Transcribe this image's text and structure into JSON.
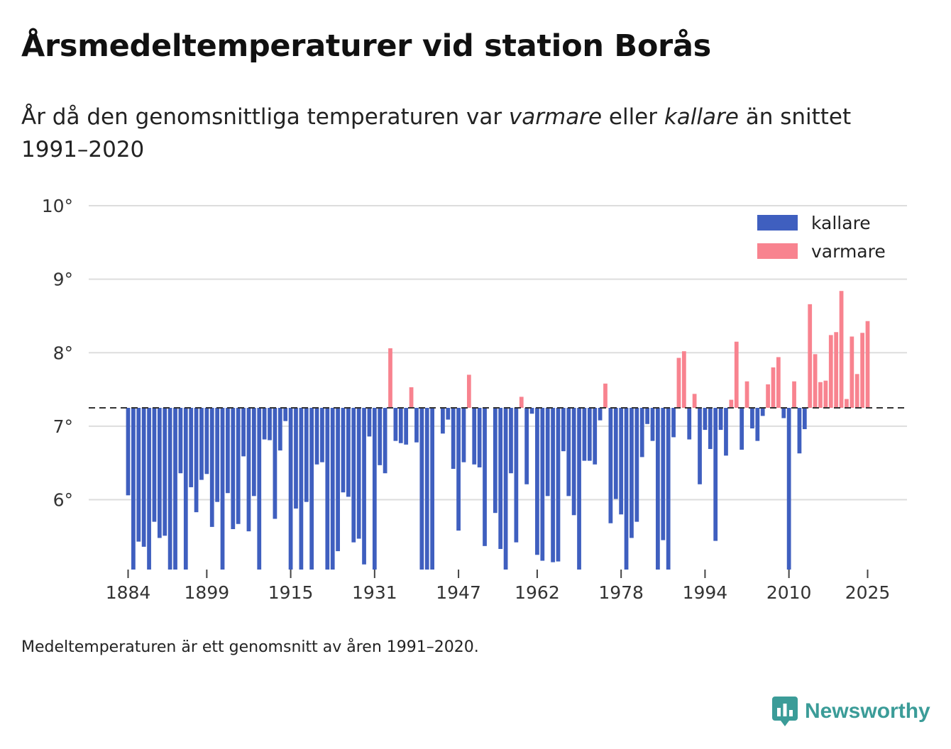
{
  "header": {
    "title": "Årsmedeltemperaturer vid station Borås",
    "subtitle_before": "År då den genomsnittliga temperaturen var ",
    "subtitle_warm": "varmare",
    "subtitle_middle": " eller ",
    "subtitle_cold": "kallare",
    "subtitle_after": " än snittet 1991–2020"
  },
  "footnote": "Medeltemperaturen är ett genomsnitt av åren 1991–2020.",
  "brand": {
    "name": "Newsworthy",
    "icon": "newsworthy-logo-icon"
  },
  "colors": {
    "cold": "#3f5fbf",
    "warm": "#f8838f",
    "grid": "#dddddd",
    "axis_text": "#333333",
    "baseline": "#333333",
    "brand": "#3b9c98"
  },
  "chart_data": {
    "type": "bar",
    "title": "Årsmedeltemperaturer vid station Borås",
    "xlabel": "",
    "ylabel": "",
    "baseline": 7.25,
    "ylim": [
      5.05,
      10
    ],
    "y_ticks": [
      6,
      7,
      8,
      9,
      10
    ],
    "y_tick_labels": [
      "6°",
      "7°",
      "8°",
      "9°",
      "10°"
    ],
    "x_ticks": [
      1884,
      1899,
      1915,
      1931,
      1947,
      1962,
      1978,
      1994,
      2010,
      2025
    ],
    "x_tick_labels": [
      "1884",
      "1899",
      "1915",
      "1931",
      "1947",
      "1962",
      "1978",
      "1994",
      "2010",
      "2025"
    ],
    "legend": [
      {
        "key": "cold",
        "label": "kallare"
      },
      {
        "key": "warm",
        "label": "varmare"
      }
    ],
    "legend_position": "top-right",
    "grid": true,
    "start_year": 1884,
    "values": [
      6.06,
      5.05,
      5.43,
      5.36,
      5.05,
      5.7,
      5.48,
      5.51,
      5.05,
      5.05,
      6.36,
      5.05,
      6.17,
      5.83,
      6.27,
      6.35,
      5.63,
      5.97,
      5.05,
      6.09,
      5.6,
      5.67,
      6.59,
      5.57,
      6.05,
      5.05,
      6.82,
      6.81,
      5.74,
      6.67,
      7.07,
      5.05,
      5.88,
      5.05,
      5.97,
      5.05,
      6.48,
      6.51,
      5.05,
      5.05,
      5.3,
      6.1,
      6.04,
      5.42,
      5.47,
      5.12,
      6.86,
      5.05,
      6.47,
      6.36,
      8.06,
      6.8,
      6.77,
      6.75,
      7.53,
      6.78,
      5.05,
      5.05,
      5.05,
      7.25,
      6.9,
      7.09,
      6.42,
      5.58,
      6.51,
      7.7,
      6.48,
      6.44,
      5.37,
      7.25,
      5.82,
      5.33,
      5.05,
      6.36,
      5.42,
      7.4,
      6.21,
      7.17,
      5.25,
      5.17,
      6.05,
      5.15,
      5.16,
      6.66,
      6.05,
      5.79,
      5.05,
      6.53,
      6.53,
      6.48,
      7.08,
      7.58,
      5.68,
      6.01,
      5.8,
      5.05,
      5.48,
      5.7,
      6.58,
      7.03,
      6.8,
      5.05,
      5.45,
      5.05,
      6.85,
      7.93,
      8.02,
      6.82,
      7.44,
      6.21,
      6.95,
      6.69,
      5.44,
      6.95,
      6.6,
      7.36,
      8.15,
      6.68,
      7.61,
      6.97,
      6.8,
      7.14,
      7.57,
      7.8,
      7.94,
      7.11,
      5.05,
      7.61,
      6.63,
      6.96,
      8.66,
      7.98,
      7.6,
      7.62,
      8.24,
      8.28,
      8.84,
      7.37,
      8.22,
      7.71,
      8.27,
      8.43
    ]
  }
}
